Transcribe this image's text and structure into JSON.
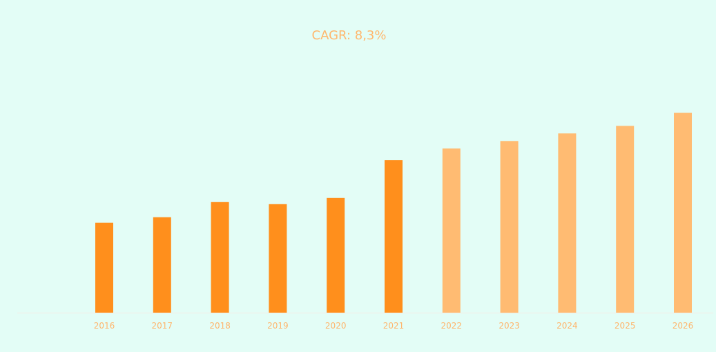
{
  "chart_data": {
    "type": "bar",
    "title": "CAGR: 8,3%",
    "xlabel": "",
    "ylabel": "",
    "categories": [
      "2016",
      "2017",
      "2018",
      "2019",
      "2020",
      "2021",
      "2022",
      "2023",
      "2024",
      "2025",
      "2026"
    ],
    "values": [
      131,
      139,
      161,
      158,
      167,
      222,
      239,
      250,
      261,
      272,
      291
    ],
    "series_kind": [
      "actual",
      "actual",
      "actual",
      "actual",
      "actual",
      "actual",
      "forecast",
      "forecast",
      "forecast",
      "forecast",
      "forecast"
    ],
    "ylim": [
      0,
      400
    ],
    "grid": false,
    "legend": "none"
  },
  "colors": {
    "background": "#e3fdf6",
    "actual": "#ff8f1c",
    "forecast": "#ffbb72",
    "title": "#ffb76d",
    "tick_label": "#ffb46a",
    "axis_line": "#f4ece4"
  }
}
